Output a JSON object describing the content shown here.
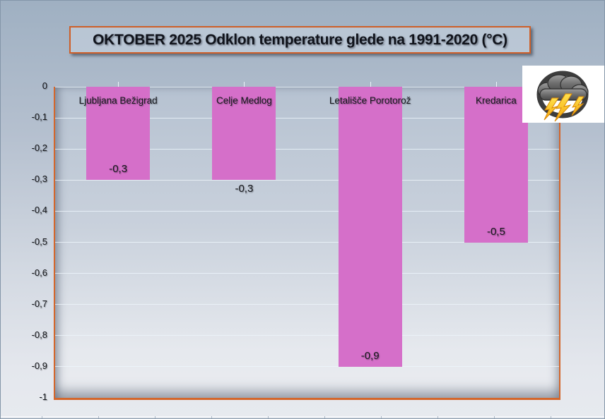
{
  "title": {
    "text": "OKTOBER 2025 Odklon temperature glede na 1991-2020 (°C)"
  },
  "colors": {
    "bar": "#d56fc9",
    "frame_accent": "#d4662b",
    "lightning_yellow": "#ffcc11",
    "lightning_outline": "#d98908",
    "cloud_gray": "#6e6e6e",
    "icon_ring": "#3d3d3d"
  },
  "icons": {
    "storm_icon": "thunderstorm-cloud-with-lightning-in-circle"
  },
  "chart_data": {
    "type": "bar",
    "title": "OKTOBER 2025 Odklon temperature glede na 1991-2020 (°C)",
    "categories": [
      "Ljubljana Bežigrad",
      "Celje Medlog",
      "Letališče Porotorož",
      "Kredarica"
    ],
    "values": [
      -0.3,
      -0.3,
      -0.9,
      -0.5
    ],
    "value_labels": [
      "-0,3",
      "-0,3",
      "-0,9",
      "-0,5"
    ],
    "value_label_inside": [
      true,
      false,
      true,
      true
    ],
    "category_labels_position": "inside-top",
    "ylim": [
      -1,
      0
    ],
    "yticks": [
      0,
      -0.1,
      -0.2,
      -0.3,
      -0.4,
      -0.5,
      -0.6,
      -0.7,
      -0.8,
      -0.9,
      -1
    ],
    "ytick_labels": [
      "0",
      "-0,1",
      "-0,2",
      "-0,3",
      "-0,4",
      "-0,5",
      "-0,6",
      "-0,7",
      "-0,8",
      "-0,9",
      "-1"
    ],
    "xlabel": "",
    "ylabel": "",
    "grid": true,
    "legend": false,
    "decimal_separator": ","
  }
}
